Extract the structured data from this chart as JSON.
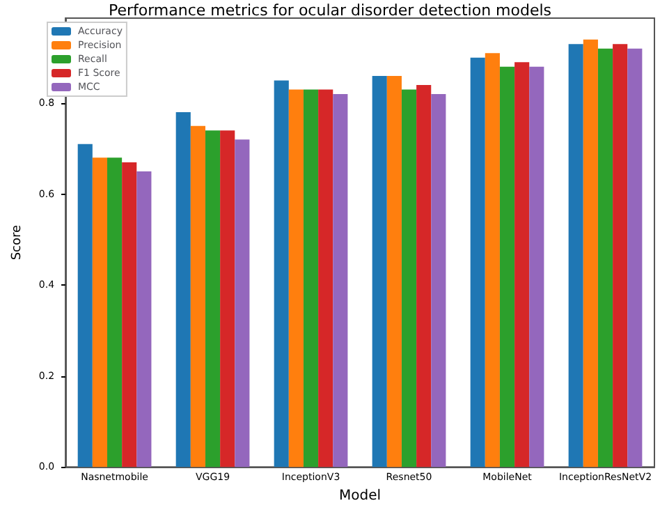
{
  "chart_data": {
    "type": "bar",
    "title": "Performance metrics for ocular disorder detection models",
    "xlabel": "Model",
    "ylabel": "Score",
    "categories": [
      "Nasnetmobile",
      "VGG19",
      "InceptionV3",
      "Resnet50",
      "MobileNet",
      "InceptionResNetV2"
    ],
    "series": [
      {
        "name": "Accuracy",
        "color": "#1f77b4",
        "values": [
          0.71,
          0.78,
          0.85,
          0.86,
          0.9,
          0.93
        ]
      },
      {
        "name": "Precision",
        "color": "#ff7f0e",
        "values": [
          0.68,
          0.75,
          0.83,
          0.86,
          0.91,
          0.94
        ]
      },
      {
        "name": "Recall",
        "color": "#2ca02c",
        "values": [
          0.68,
          0.74,
          0.83,
          0.83,
          0.88,
          0.92
        ]
      },
      {
        "name": "F1 Score",
        "color": "#d62728",
        "values": [
          0.67,
          0.74,
          0.83,
          0.84,
          0.89,
          0.93
        ]
      },
      {
        "name": "MCC",
        "color": "#9467bd",
        "values": [
          0.65,
          0.72,
          0.82,
          0.82,
          0.88,
          0.92
        ]
      }
    ],
    "ylim": [
      0,
      0.987
    ],
    "yticks": [
      {
        "value": 0,
        "label": "0.0"
      },
      0.2,
      0.4,
      0.6,
      0.8
    ],
    "legend": "top left",
    "grid": false
  }
}
